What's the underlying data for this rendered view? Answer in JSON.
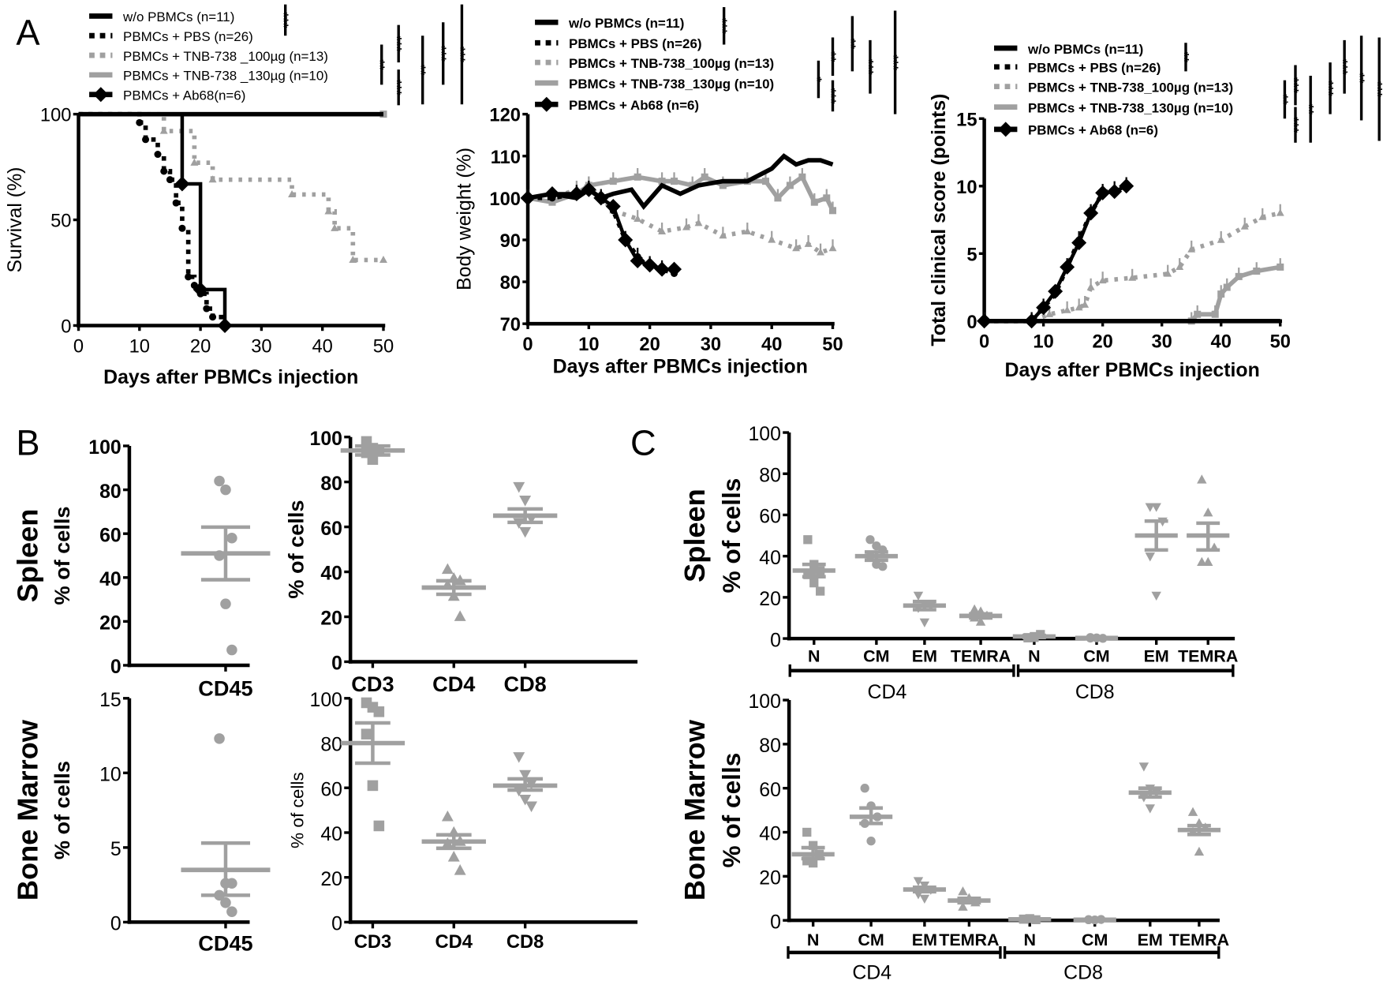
{
  "colors": {
    "black": "#000000",
    "gray": "#a0a0a0"
  },
  "panel_labels": {
    "A": "A",
    "B": "B",
    "C": "C"
  },
  "chart_data": [
    {
      "id": "survival",
      "type": "line",
      "ylabel": "Survival (%)",
      "xlabel": "Days after PBMCs injection",
      "xlim": [
        0,
        50
      ],
      "ylim": [
        0,
        100
      ],
      "xticks": [
        "0",
        "10",
        "20",
        "30",
        "40",
        "50"
      ],
      "yticks": [
        "0",
        "50",
        "100"
      ],
      "legend": [
        "w/o PBMCs (n=11)",
        "PBMCs + PBS (n=26)",
        "PBMCs + TNB-738 _100µg (n=13)",
        "PBMCs + TNB-738 _130µg (n=10)",
        "PBMCs + Ab68(n=6)"
      ],
      "significance": [
        "***",
        "**",
        "***",
        "***",
        "**",
        "***",
        "***"
      ],
      "series": [
        {
          "name": "w/o PBMCs",
          "x": [
            0,
            50
          ],
          "y": [
            100,
            100
          ]
        },
        {
          "name": "PBMCs + PBS",
          "x": [
            0,
            10,
            11,
            13,
            14,
            15,
            16,
            17,
            18,
            19,
            20,
            21,
            22,
            24
          ],
          "y": [
            100,
            96,
            88,
            81,
            73,
            69,
            58,
            46,
            23,
            19,
            15,
            8,
            4,
            0
          ]
        },
        {
          "name": "PBMCs + TNB-738 _100µg",
          "x": [
            0,
            14,
            19,
            22,
            35,
            41,
            42,
            45,
            50
          ],
          "y": [
            100,
            92,
            77,
            69,
            62,
            54,
            46,
            31,
            31
          ]
        },
        {
          "name": "PBMCs + TNB-738 _130µg",
          "x": [
            0,
            50
          ],
          "y": [
            100,
            100
          ]
        },
        {
          "name": "PBMCs + Ab68",
          "x": [
            0,
            17,
            20,
            24
          ],
          "y": [
            100,
            67,
            17,
            0
          ]
        }
      ]
    },
    {
      "id": "body-weight",
      "type": "line",
      "ylabel": "Body weight (%)",
      "xlabel": "Days after PBMCs injection",
      "xlim": [
        0,
        50
      ],
      "ylim": [
        70,
        120
      ],
      "xticks": [
        "0",
        "10",
        "20",
        "30",
        "40",
        "50"
      ],
      "yticks": [
        "70",
        "80",
        "90",
        "100",
        "110",
        "120"
      ],
      "legend": [
        "w/o PBMCs (n=11)",
        "PBMCs + PBS (n=26)",
        "PBMCs + TNB-738_100µg (n=13)",
        "PBMCs + TNB-738_130µg (n=10)",
        "PBMCs + Ab68 (n=6)"
      ],
      "significance": [
        "***",
        "*",
        "**",
        "***",
        "**",
        "***",
        "***"
      ],
      "series": [
        {
          "name": "w/o PBMCs",
          "x": [
            0,
            4,
            8,
            10,
            12,
            14,
            17,
            19,
            22,
            25,
            28,
            32,
            36,
            40,
            42,
            44,
            46,
            48,
            50
          ],
          "y": [
            100,
            101,
            100,
            102,
            100,
            101,
            102,
            98,
            103,
            101,
            103,
            104,
            104,
            107,
            110,
            108,
            109,
            109,
            108
          ]
        },
        {
          "name": "PBMCs + PBS",
          "x": [
            0,
            4,
            8,
            10,
            12,
            14,
            16,
            18,
            20,
            22,
            24
          ],
          "y": [
            100,
            100,
            101,
            102,
            100,
            97,
            90,
            86,
            84,
            83,
            82
          ]
        },
        {
          "name": "PBMCs + TNB-738_100µg",
          "x": [
            0,
            4,
            8,
            10,
            14,
            18,
            22,
            26,
            28,
            32,
            36,
            40,
            44,
            46,
            48,
            50
          ],
          "y": [
            100,
            100,
            102,
            103,
            97,
            95,
            92,
            93,
            94,
            91,
            92,
            90,
            88,
            89,
            87,
            88
          ]
        },
        {
          "name": "PBMCs + TNB-738_130µg",
          "x": [
            0,
            4,
            8,
            10,
            14,
            18,
            22,
            24,
            27,
            29,
            32,
            36,
            39,
            41,
            43,
            45,
            47,
            49,
            50
          ],
          "y": [
            100,
            99,
            101,
            103,
            104,
            105,
            104,
            104,
            103,
            105,
            103,
            104,
            104,
            100,
            103,
            105,
            99,
            100,
            97
          ]
        },
        {
          "name": "PBMCs + Ab68",
          "x": [
            0,
            4,
            8,
            10,
            12,
            14,
            16,
            18,
            20,
            22,
            24
          ],
          "y": [
            100,
            101,
            101,
            102,
            100,
            98,
            90,
            85,
            84,
            83,
            83
          ]
        }
      ]
    },
    {
      "id": "clinical-score",
      "type": "line",
      "ylabel": "Total clinical score (points)",
      "xlabel": "Days after PBMCs injection",
      "xlim": [
        0,
        50
      ],
      "ylim": [
        0,
        15
      ],
      "xticks": [
        "0",
        "10",
        "20",
        "30",
        "40",
        "50"
      ],
      "yticks": [
        "0",
        "5",
        "10",
        "15"
      ],
      "legend": [
        "w/o PBMCs (n=11)",
        "PBMCs + PBS (n=26)",
        "PBMCs + TNB-738_100µg (n=13)",
        "PBMCs + TNB-738_130µg (n=10)",
        "PBMCs + Ab68 (n=6)"
      ],
      "significance": [
        "**",
        "**",
        "***",
        "***",
        "**",
        "***",
        "***",
        "**",
        "***"
      ],
      "series": [
        {
          "name": "w/o PBMCs",
          "x": [
            0,
            50
          ],
          "y": [
            0,
            0
          ]
        },
        {
          "name": "PBMCs + PBS",
          "x": [
            0,
            8,
            10,
            12,
            14,
            16,
            18,
            20,
            22,
            24
          ],
          "y": [
            0,
            0,
            1,
            2,
            4,
            6,
            8,
            9.5,
            9.7,
            10
          ]
        },
        {
          "name": "PBMCs + TNB-738_100µg",
          "x": [
            0,
            8,
            11,
            14,
            16,
            17,
            18,
            20,
            25,
            31,
            33,
            35,
            40,
            44,
            47,
            50
          ],
          "y": [
            0,
            0,
            0.5,
            0.8,
            1,
            1.2,
            2.5,
            3,
            3.2,
            3.5,
            4,
            5.3,
            6,
            7,
            7.7,
            8
          ]
        },
        {
          "name": "PBMCs + TNB-738_130µg",
          "x": [
            0,
            35,
            36,
            39,
            40,
            41,
            43,
            46,
            50
          ],
          "y": [
            0,
            0,
            0.5,
            0.5,
            2,
            2.5,
            3.3,
            3.7,
            4
          ]
        },
        {
          "name": "PBMCs + Ab68",
          "x": [
            0,
            8,
            10,
            12,
            14,
            16,
            18,
            20,
            22,
            24
          ],
          "y": [
            0,
            0,
            1,
            2.2,
            4,
            5.8,
            8,
            9.5,
            9.6,
            10
          ]
        }
      ]
    },
    {
      "id": "spleen-cd45",
      "type": "scatter",
      "row_label": "Spleen",
      "ylabel": "% of cells",
      "ylim": [
        0,
        100
      ],
      "yticks": [
        "0",
        "20",
        "40",
        "60",
        "80",
        "100"
      ],
      "categories": [
        "CD45"
      ],
      "groups": [
        {
          "marker": "circle",
          "points": [
            84,
            80,
            58,
            50,
            28,
            7
          ],
          "mean": 51,
          "sem": [
            39,
            63
          ]
        }
      ]
    },
    {
      "id": "spleen-cd3-cd4-cd8",
      "type": "scatter",
      "ylabel": "% of cells",
      "ylim": [
        0,
        100
      ],
      "yticks": [
        "0",
        "20",
        "40",
        "60",
        "80",
        "100"
      ],
      "categories": [
        "CD3",
        "CD4",
        "CD8"
      ],
      "groups": [
        {
          "marker": "square",
          "points": [
            98,
            95,
            94,
            93,
            90
          ],
          "mean": 94,
          "sem": [
            92,
            96
          ]
        },
        {
          "marker": "triangle-up",
          "points": [
            41,
            37,
            36,
            34,
            29,
            20
          ],
          "mean": 33,
          "sem": [
            30,
            36
          ]
        },
        {
          "marker": "triangle-down",
          "points": [
            78,
            72,
            64,
            62,
            58
          ],
          "mean": 65,
          "sem": [
            62,
            68
          ]
        }
      ]
    },
    {
      "id": "bone-marrow-cd45",
      "type": "scatter",
      "row_label": "Bone Marrow",
      "ylabel": "% of cells",
      "ylim": [
        0,
        15
      ],
      "yticks": [
        "0",
        "5",
        "10",
        "15"
      ],
      "categories": [
        "CD45"
      ],
      "groups": [
        {
          "marker": "circle",
          "points": [
            12.3,
            2.6,
            2.6,
            1.8,
            1.3,
            0.7
          ],
          "mean": 3.5,
          "sem": [
            1.8,
            5.3
          ]
        }
      ]
    },
    {
      "id": "bone-marrow-cd3-cd4-cd8",
      "type": "scatter",
      "ylabel": "% of cells",
      "ylim": [
        0,
        100
      ],
      "yticks": [
        "0",
        "20",
        "40",
        "60",
        "80",
        "100"
      ],
      "categories": [
        "CD3",
        "CD4",
        "CD8"
      ],
      "groups": [
        {
          "marker": "square",
          "points": [
            98,
            96,
            94,
            84,
            61,
            43
          ],
          "mean": 80,
          "sem": [
            71,
            89
          ]
        },
        {
          "marker": "triangle-up",
          "points": [
            47,
            40,
            36,
            35,
            29,
            23
          ],
          "mean": 36,
          "sem": [
            33,
            39
          ]
        },
        {
          "marker": "triangle-down",
          "points": [
            74,
            66,
            62,
            59,
            55,
            52
          ],
          "mean": 61,
          "sem": [
            59,
            64
          ]
        }
      ]
    },
    {
      "id": "spleen-subsets",
      "type": "scatter",
      "row_label": "Spleen",
      "ylabel": "% of cells",
      "ylim": [
        0,
        100
      ],
      "yticks": [
        "0",
        "20",
        "40",
        "60",
        "80",
        "100"
      ],
      "categories": [
        "N",
        "CM",
        "EM",
        "TEMRA",
        "N",
        "CM",
        "EM",
        "TEMRA"
      ],
      "category_groups": [
        "CD4",
        "CD8"
      ],
      "groups": [
        {
          "marker": "square",
          "points": [
            48,
            36,
            33,
            31,
            27,
            23
          ],
          "mean": 33,
          "sem": [
            30,
            36
          ]
        },
        {
          "marker": "circle",
          "points": [
            48,
            45,
            43,
            40,
            36,
            35
          ],
          "mean": 40,
          "sem": [
            38,
            42
          ]
        },
        {
          "marker": "triangle-down",
          "points": [
            21,
            17,
            16,
            15,
            8
          ],
          "mean": 16,
          "sem": [
            14,
            18
          ]
        },
        {
          "marker": "triangle-up",
          "points": [
            14,
            13,
            11,
            10,
            8
          ],
          "mean": 11,
          "sem": [
            10,
            12
          ]
        },
        {
          "marker": "square",
          "points": [
            0.5,
            1,
            2,
            0.3,
            0.5
          ],
          "mean": 1,
          "sem": [
            0.5,
            1.5
          ]
        },
        {
          "marker": "circle",
          "points": [
            0.2,
            0.3,
            0.1,
            0.5
          ],
          "mean": 0.3,
          "sem": [
            0.1,
            0.5
          ]
        },
        {
          "marker": "triangle-down",
          "points": [
            64,
            64,
            57,
            40,
            21
          ],
          "mean": 50,
          "sem": [
            43,
            57
          ]
        },
        {
          "marker": "triangle-up",
          "points": [
            77,
            61,
            44,
            37,
            37
          ],
          "mean": 50,
          "sem": [
            43,
            56
          ]
        }
      ]
    },
    {
      "id": "bone-marrow-subsets",
      "type": "scatter",
      "row_label": "Bone Marrow",
      "ylabel": "% of cells",
      "ylim": [
        0,
        100
      ],
      "yticks": [
        "0",
        "20",
        "40",
        "60",
        "80",
        "100"
      ],
      "categories": [
        "N",
        "CM",
        "EM",
        "TEMRA",
        "N",
        "CM",
        "EM",
        "TEMRA"
      ],
      "category_groups": [
        "CD4",
        "CD8"
      ],
      "groups": [
        {
          "marker": "square",
          "points": [
            40,
            34,
            30,
            27,
            26
          ],
          "mean": 30,
          "sem": [
            28,
            33
          ]
        },
        {
          "marker": "circle",
          "points": [
            60,
            52,
            47,
            44,
            36
          ],
          "mean": 47,
          "sem": [
            44,
            51
          ]
        },
        {
          "marker": "triangle-down",
          "points": [
            18,
            16,
            14,
            12,
            10
          ],
          "mean": 14,
          "sem": [
            13,
            15
          ]
        },
        {
          "marker": "triangle-up",
          "points": [
            13,
            10,
            8,
            6
          ],
          "mean": 9,
          "sem": [
            8,
            10
          ]
        },
        {
          "marker": "square",
          "points": [
            0.5,
            0.8,
            0.3,
            0.6
          ],
          "mean": 0.5,
          "sem": [
            0.3,
            0.7
          ]
        },
        {
          "marker": "circle",
          "points": [
            0.3,
            0.2,
            0.4,
            0.3
          ],
          "mean": 0.3,
          "sem": [
            0.2,
            0.4
          ]
        },
        {
          "marker": "triangle-down",
          "points": [
            70,
            60,
            58,
            56,
            51
          ],
          "mean": 58,
          "sem": [
            56,
            60
          ]
        },
        {
          "marker": "triangle-up",
          "points": [
            49,
            44,
            42,
            40,
            31
          ],
          "mean": 41,
          "sem": [
            39,
            43
          ]
        }
      ]
    }
  ]
}
